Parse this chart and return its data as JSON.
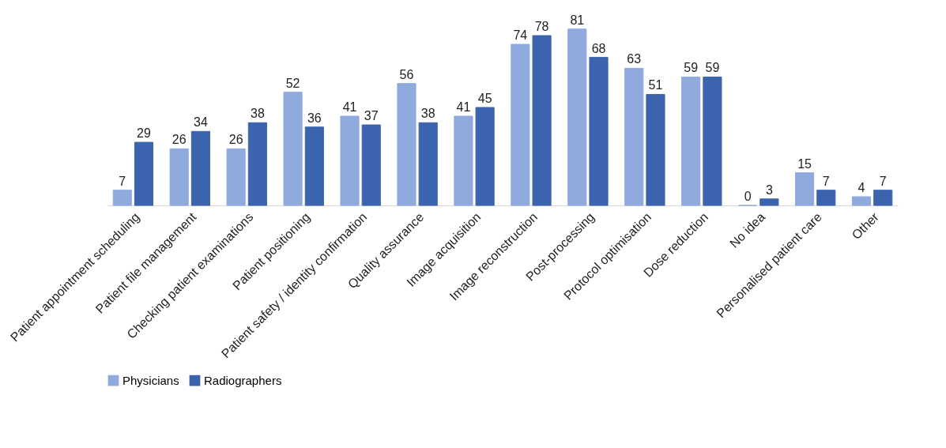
{
  "chart_data": {
    "type": "bar",
    "categories": [
      "Patient appointment scheduling",
      "Patient file management",
      "Checking patient examinations",
      "Patient positioning",
      "Patient safety / identity confirmation",
      "Quality assurance",
      "Image acquisition",
      "Image reconstruction",
      "Post-processing",
      "Protocol optimisation",
      "Dose reduction",
      "No idea",
      "Personalised patient care",
      "Other"
    ],
    "series": [
      {
        "name": "Physicians",
        "color": "#8faadc",
        "values": [
          7,
          26,
          26,
          52,
          41,
          56,
          41,
          74,
          81,
          63,
          59,
          0,
          15,
          4
        ]
      },
      {
        "name": "Radiographers",
        "color": "#3c64ae",
        "values": [
          29,
          34,
          38,
          36,
          37,
          38,
          45,
          78,
          68,
          51,
          59,
          3,
          7,
          7
        ]
      }
    ],
    "data_labels": true,
    "legend": "bottom",
    "grid": false
  }
}
